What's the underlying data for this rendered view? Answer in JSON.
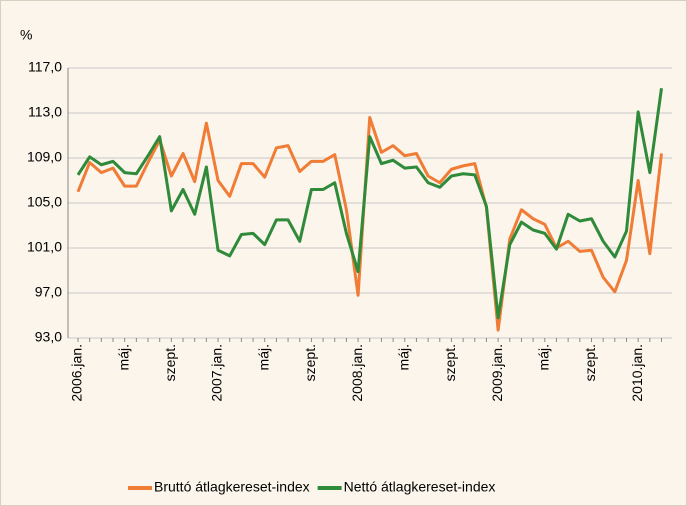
{
  "chart_data": {
    "type": "line",
    "y_label": "%",
    "categories": [
      "2006.jan.",
      null,
      null,
      null,
      "máj.",
      null,
      null,
      null,
      "szept.",
      null,
      null,
      null,
      "2007.jan.",
      null,
      null,
      null,
      "máj.",
      null,
      null,
      null,
      "szept.",
      null,
      null,
      null,
      "2008.jan.",
      null,
      null,
      null,
      "máj.",
      null,
      null,
      null,
      "szept.",
      null,
      null,
      null,
      "2009.jan.",
      null,
      null,
      null,
      "máj.",
      null,
      null,
      null,
      "szept.",
      null,
      null,
      null,
      "2010.jan.",
      null,
      null
    ],
    "series": [
      {
        "name": "Bruttó átlagkereset-index",
        "color": "#f07c35",
        "values": [
          106.0,
          108.6,
          107.7,
          108.1,
          106.5,
          106.5,
          108.6,
          110.6,
          107.4,
          109.4,
          106.9,
          112.1,
          107.0,
          105.6,
          108.5,
          108.5,
          107.3,
          109.9,
          110.1,
          107.8,
          108.7,
          108.7,
          109.3,
          104.4,
          96.8,
          112.6,
          109.5,
          110.1,
          109.2,
          109.4,
          107.4,
          106.8,
          108.0,
          108.3,
          108.5,
          104.6,
          93.7,
          101.8,
          104.4,
          103.6,
          103.1,
          101.0,
          101.6,
          100.7,
          100.8,
          98.4,
          97.1,
          99.9,
          107.0,
          100.5,
          109.4
        ]
      },
      {
        "name": "Nettó átlagkereset-index",
        "color": "#2f8a3a",
        "values": [
          107.5,
          109.1,
          108.4,
          108.7,
          107.7,
          107.6,
          109.2,
          110.9,
          104.3,
          106.2,
          104.0,
          108.2,
          100.8,
          100.3,
          102.2,
          102.3,
          101.3,
          103.5,
          103.5,
          101.6,
          106.2,
          106.2,
          106.8,
          102.3,
          98.9,
          110.9,
          108.5,
          108.8,
          108.1,
          108.2,
          106.8,
          106.4,
          107.4,
          107.6,
          107.5,
          104.7,
          94.8,
          101.3,
          103.3,
          102.6,
          102.3,
          100.9,
          104.0,
          103.4,
          103.6,
          101.6,
          100.2,
          102.5,
          113.1,
          107.7,
          115.2
        ]
      }
    ],
    "ylim": [
      93,
      117
    ],
    "yticks": [
      {
        "value": 93,
        "label": "93,0"
      },
      {
        "value": 97,
        "label": "97,0"
      },
      {
        "value": 101,
        "label": "101,0"
      },
      {
        "value": 105,
        "label": "105,0"
      },
      {
        "value": 109,
        "label": "109,0"
      },
      {
        "value": 113,
        "label": "113,0"
      },
      {
        "value": 117,
        "label": "117,0"
      }
    ],
    "grid": true,
    "legend": "bottom"
  }
}
